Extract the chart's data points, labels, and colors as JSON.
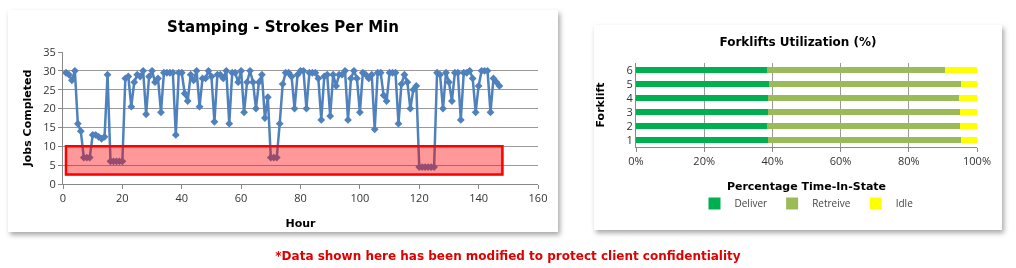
{
  "chart_data": [
    {
      "type": "line",
      "title": "Stamping - Strokes Per Min",
      "xlabel": "Hour",
      "ylabel": "Jobs Completed",
      "x": [
        1,
        2,
        3,
        4,
        5,
        6,
        7,
        8,
        9,
        10,
        11,
        12,
        13,
        14,
        15,
        16,
        17,
        18,
        19,
        20,
        21,
        22,
        23,
        24,
        25,
        26,
        27,
        28,
        29,
        30,
        31,
        32,
        33,
        34,
        35,
        36,
        37,
        38,
        39,
        40,
        41,
        42,
        43,
        44,
        45,
        46,
        47,
        48,
        49,
        50,
        51,
        52,
        53,
        54,
        55,
        56,
        57,
        58,
        59,
        60,
        61,
        62,
        63,
        64,
        65,
        66,
        67,
        68,
        69,
        70,
        71,
        72,
        73,
        74,
        75,
        76,
        77,
        78,
        79,
        80,
        81,
        82,
        83,
        84,
        85,
        86,
        87,
        88,
        89,
        90,
        91,
        92,
        93,
        94,
        95,
        96,
        97,
        98,
        99,
        100,
        101,
        102,
        103,
        104,
        105,
        106,
        107,
        108,
        109,
        110,
        111,
        112,
        113,
        114,
        115,
        116,
        117,
        118,
        119,
        120,
        121,
        122,
        123,
        124,
        125,
        126,
        127,
        128,
        129,
        130,
        131,
        132,
        133,
        134,
        135,
        136,
        137,
        138,
        139,
        140,
        141,
        142,
        143,
        144,
        145,
        146,
        147
      ],
      "series": [
        {
          "color": "#4f81bd",
          "values": [
            29.5,
            29,
            27.5,
            30,
            16,
            14,
            7,
            7,
            7,
            13,
            13,
            12.5,
            12,
            12.5,
            29,
            6,
            6,
            6,
            6,
            6,
            28,
            28.5,
            20.5,
            27,
            29,
            28.5,
            30,
            18.5,
            28.5,
            30,
            27,
            28,
            19,
            29.5,
            29.5,
            29.5,
            29.5,
            13,
            29.5,
            29.5,
            24,
            22,
            29,
            27.5,
            30,
            20.5,
            28,
            28,
            30,
            28.5,
            16.5,
            29,
            29,
            28,
            30,
            16,
            29.5,
            29.5,
            27,
            30,
            19,
            27,
            30,
            27,
            20,
            27,
            29,
            17.5,
            23,
            7,
            7,
            7,
            16,
            26.5,
            29.5,
            29.5,
            28.5,
            20,
            29,
            30,
            30,
            20,
            29.5,
            29.5,
            29.5,
            28,
            17,
            28.5,
            29,
            18,
            29,
            26,
            29,
            29,
            30,
            17,
            28,
            30,
            28,
            19,
            29.5,
            29,
            28,
            29,
            14.5,
            29.5,
            29.5,
            23.5,
            22,
            29.5,
            29.5,
            29.5,
            16,
            26.5,
            29,
            27,
            20,
            25,
            26,
            4.5,
            4.5,
            4.5,
            4.5,
            4.5,
            4.5,
            29.5,
            29,
            20,
            29.5,
            27,
            22,
            29.5,
            29.5,
            17,
            29.5,
            29.5,
            30,
            28,
            19,
            26,
            30,
            30,
            30,
            19,
            28,
            27,
            26
          ]
        }
      ],
      "xlim": [
        0,
        160
      ],
      "xticks": [
        0,
        20,
        40,
        60,
        80,
        100,
        120,
        140,
        160
      ],
      "ylim": [
        0,
        35
      ],
      "yticks": [
        0,
        5,
        10,
        15,
        20,
        25,
        30,
        35
      ],
      "grid": "y",
      "marker": "diamond",
      "line_style": "solid",
      "legend": false,
      "bands": [
        {
          "axis": "y",
          "from": 2.5,
          "to": 10,
          "color": "#ff0000"
        }
      ],
      "annotations": [
        "*Data shown here has been modified to protect client confidentiality"
      ]
    },
    {
      "type": "bar",
      "orientation": "horizontal",
      "stacked": true,
      "title": "Forklifts Utilization (%)",
      "xlabel": "Percentage Time-In-State",
      "ylabel": "Forklift",
      "categories": [
        "6",
        "5",
        "4",
        "3",
        "2",
        "1"
      ],
      "series": [
        {
          "name": "Deliver",
          "color": "#00b050",
          "values": [
            38.3,
            39,
            38.6,
            38.6,
            38.4,
            38.6
          ]
        },
        {
          "name": "Retreive",
          "color": "#9bbb59",
          "values": [
            52.3,
            56.3,
            56.1,
            56.5,
            56.5,
            56.7
          ]
        },
        {
          "name": "Idle",
          "color": "#ffff00",
          "values": [
            9.4,
            4.7,
            5.3,
            4.9,
            5.1,
            4.7
          ]
        }
      ],
      "xlim": [
        0,
        100
      ],
      "xticks": [
        {
          "value": 0,
          "label": "0%"
        },
        {
          "value": 20,
          "label": "20%"
        },
        {
          "value": 40,
          "label": "40%"
        },
        {
          "value": 60,
          "label": "60%"
        },
        {
          "value": 80,
          "label": "80%"
        },
        {
          "value": 100,
          "label": "100%"
        }
      ],
      "grid": "x",
      "legend": "bottom"
    }
  ]
}
